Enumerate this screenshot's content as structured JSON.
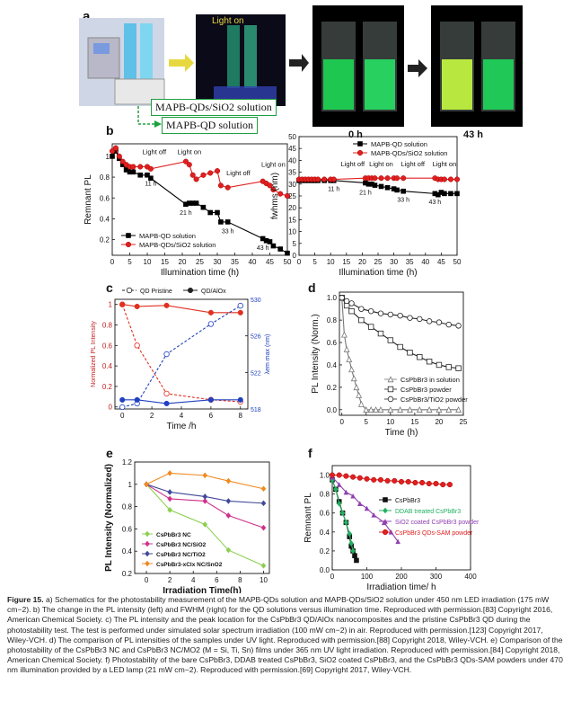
{
  "panel_a": {
    "letter": "a",
    "light_on": "Light on",
    "label_sio2": "MAPB-QDs/SiO2 solution",
    "label_qd": "MAPB-QD solution",
    "time0": "0 h",
    "time43": "43 h"
  },
  "chart_data": [
    {
      "id": "b-left",
      "type": "line",
      "letter": "b",
      "ylabel": "Remnant PL",
      "xlabel": "Illumination time (h)",
      "xlim": [
        0,
        50
      ],
      "ylim": [
        0.05,
        1.12
      ],
      "xticks": [
        0,
        5,
        10,
        15,
        20,
        25,
        30,
        35,
        40,
        45,
        50
      ],
      "yticks": [
        0.2,
        0.4,
        0.6,
        0.8,
        1.0
      ],
      "legend": "bottom-left",
      "annotations": [
        "Light off",
        "Light on",
        "Light off",
        "Light on",
        "11 h",
        "21 h",
        "33 h",
        "43 h"
      ],
      "series": [
        {
          "name": "MAPB-QD solution",
          "color": "#000000",
          "marker": "square",
          "x": [
            0,
            1,
            2,
            3,
            4,
            5,
            6,
            8,
            10,
            11,
            21,
            22,
            23,
            24,
            26,
            28,
            30,
            31,
            33,
            43,
            44,
            45,
            46,
            48,
            50
          ],
          "y": [
            1.0,
            1.05,
            0.98,
            0.92,
            0.87,
            0.85,
            0.85,
            0.82,
            0.82,
            0.79,
            0.54,
            0.55,
            0.55,
            0.55,
            0.51,
            0.46,
            0.46,
            0.37,
            0.37,
            0.21,
            0.19,
            0.18,
            0.14,
            0.11,
            0.07
          ]
        },
        {
          "name": "MAPB-QDs/SiO2 solution",
          "color": "#e02020",
          "marker": "circle",
          "x": [
            0,
            1,
            2,
            3,
            4,
            5,
            6,
            8,
            10,
            11,
            21,
            22,
            23,
            24,
            26,
            28,
            30,
            31,
            33,
            43,
            44,
            45,
            46,
            48,
            50
          ],
          "y": [
            1.05,
            1.08,
            1.0,
            0.95,
            0.92,
            0.9,
            0.9,
            0.9,
            0.9,
            0.88,
            0.95,
            0.92,
            0.82,
            0.78,
            0.82,
            0.84,
            0.86,
            0.72,
            0.7,
            0.76,
            0.74,
            0.72,
            0.68,
            0.64,
            0.62
          ]
        }
      ]
    },
    {
      "id": "b-right",
      "type": "line",
      "ylabel": "fwhms (nm)",
      "xlabel": "Illumination time (h)",
      "xlim": [
        0,
        50
      ],
      "ylim": [
        0,
        50
      ],
      "xticks": [
        0,
        5,
        10,
        15,
        20,
        25,
        30,
        35,
        40,
        45,
        50
      ],
      "yticks": [
        0,
        5,
        10,
        15,
        20,
        25,
        30,
        35,
        40,
        45,
        50
      ],
      "legend": "top-right",
      "annotations": [
        "Light off",
        "Light on",
        "Light off",
        "Light on",
        "11 h",
        "21 h",
        "33 h",
        "43 h"
      ],
      "series": [
        {
          "name": "MAPB-QD solution",
          "color": "#000000",
          "marker": "square",
          "x": [
            0,
            1,
            2,
            3,
            4,
            5,
            6,
            8,
            10,
            11,
            21,
            22,
            23,
            24,
            26,
            28,
            30,
            31,
            33,
            43,
            44,
            45,
            46,
            48,
            50
          ],
          "y": [
            31.5,
            31.5,
            31.5,
            31.5,
            31.5,
            31.5,
            31.5,
            31.5,
            31.5,
            31.5,
            30.5,
            30,
            30,
            29.5,
            29,
            28.5,
            28,
            27.5,
            27,
            26,
            25.5,
            26.5,
            26,
            26,
            26
          ]
        },
        {
          "name": "MAPB-QDs/SiO2 solution",
          "color": "#e02020",
          "marker": "circle",
          "x": [
            0,
            1,
            2,
            3,
            4,
            5,
            6,
            8,
            10,
            11,
            21,
            22,
            23,
            24,
            26,
            28,
            30,
            31,
            33,
            43,
            44,
            45,
            46,
            48,
            50
          ],
          "y": [
            32,
            32,
            32,
            32,
            32,
            32,
            32,
            32,
            32,
            32,
            32.5,
            32.5,
            32.5,
            32.5,
            32.5,
            32.5,
            32.5,
            32.5,
            32.5,
            32.5,
            32,
            32,
            32,
            32,
            32
          ]
        }
      ]
    },
    {
      "id": "c",
      "type": "line",
      "letter": "c",
      "ylabel": "Normalized PL Intensity",
      "y2label": "λem max (nm)",
      "xlabel": "Time /h",
      "xlim": [
        -0.5,
        8.5
      ],
      "ylim": [
        -0.02,
        1.05
      ],
      "y2lim": [
        518,
        530
      ],
      "xticks": [
        0,
        2,
        4,
        6,
        8
      ],
      "yticks": [
        0,
        0.2,
        0.4,
        0.6,
        0.8,
        1.0
      ],
      "y2ticks": [
        518,
        522,
        526,
        530
      ],
      "legend_items": [
        "QD Pristine",
        "QD/AlOx"
      ],
      "series": [
        {
          "name": "QD Pristine PL",
          "axis": "left",
          "color": "#e03020",
          "style": "dashed",
          "marker": "open-circle",
          "x": [
            0,
            1,
            3,
            6,
            8
          ],
          "y": [
            1.0,
            0.6,
            0.13,
            0.07,
            0.05
          ]
        },
        {
          "name": "QD/AlOx PL",
          "axis": "left",
          "color": "#e03020",
          "style": "solid",
          "marker": "filled-circle",
          "x": [
            0,
            1,
            3,
            6,
            8
          ],
          "y": [
            1.0,
            0.98,
            0.99,
            0.92,
            0.92
          ]
        },
        {
          "name": "QD Pristine λ",
          "axis": "right",
          "color": "#2040c0",
          "style": "dashed",
          "marker": "open-circle",
          "x": [
            0,
            1,
            3,
            6,
            8
          ],
          "y": [
            518.2,
            518.6,
            524.0,
            527.3,
            529.3
          ]
        },
        {
          "name": "QD/AlOx λ",
          "axis": "right",
          "color": "#2040c0",
          "style": "solid",
          "marker": "filled-circle",
          "x": [
            0,
            1,
            3,
            6,
            8
          ],
          "y": [
            519.0,
            519.0,
            518.6,
            519.0,
            519.0
          ]
        }
      ]
    },
    {
      "id": "d",
      "type": "line",
      "letter": "d",
      "ylabel": "PL Intensity (Norm.)",
      "xlabel": "Time (h)",
      "xlim": [
        -0.5,
        25
      ],
      "ylim": [
        -0.05,
        1.05
      ],
      "xticks": [
        0,
        5,
        10,
        15,
        20,
        25
      ],
      "yticks": [
        0.0,
        0.2,
        0.4,
        0.6,
        0.8,
        1.0
      ],
      "legend": "bottom-right",
      "series": [
        {
          "name": "CsPbBr3 in solution",
          "color": "#777777",
          "marker": "open-triangle",
          "x": [
            0,
            0.5,
            1,
            1.5,
            2,
            2.5,
            3,
            3.5,
            4,
            5,
            6,
            7,
            8,
            10,
            12,
            14,
            16,
            18,
            20,
            22,
            24
          ],
          "y": [
            1.0,
            0.67,
            0.54,
            0.45,
            0.36,
            0.28,
            0.2,
            0.13,
            0.05,
            0,
            0,
            0,
            0,
            0,
            0,
            0,
            0,
            0,
            0,
            0,
            0
          ]
        },
        {
          "name": "CsPbBr3 powder",
          "color": "#222222",
          "marker": "open-square",
          "x": [
            0,
            1,
            2,
            4,
            6,
            8,
            10,
            12,
            14,
            16,
            18,
            20,
            22,
            24
          ],
          "y": [
            1.0,
            0.93,
            0.88,
            0.8,
            0.74,
            0.68,
            0.62,
            0.56,
            0.51,
            0.47,
            0.43,
            0.4,
            0.38,
            0.37
          ]
        },
        {
          "name": "CsPbBr3/TiO2 powder",
          "color": "#222222",
          "marker": "open-circle",
          "x": [
            0,
            1,
            2,
            4,
            6,
            8,
            10,
            12,
            14,
            16,
            18,
            20,
            22,
            24
          ],
          "y": [
            1.0,
            0.97,
            0.95,
            0.9,
            0.88,
            0.86,
            0.85,
            0.84,
            0.82,
            0.81,
            0.79,
            0.78,
            0.76,
            0.75
          ]
        }
      ]
    },
    {
      "id": "e",
      "type": "line",
      "letter": "e",
      "ylabel": "PL Intensity (Normalized)",
      "xlabel": "Irradiation Time(h)",
      "xlim": [
        -1,
        10.5
      ],
      "ylim": [
        0.2,
        1.2
      ],
      "xticks": [
        0,
        2,
        4,
        6,
        8,
        10
      ],
      "yticks": [
        0.2,
        0.4,
        0.6,
        0.8,
        1.0,
        1.2
      ],
      "legend": "bottom-left",
      "series": [
        {
          "name": "CsPbBr3 NC",
          "color": "#8ccf50",
          "x": [
            0,
            2,
            5,
            7,
            10
          ],
          "y": [
            1.0,
            0.77,
            0.64,
            0.41,
            0.27
          ]
        },
        {
          "name": "CsPbBr3 NC/SiO2",
          "color": "#d0308a",
          "x": [
            0,
            2,
            5,
            7,
            10
          ],
          "y": [
            1.0,
            0.87,
            0.85,
            0.72,
            0.61
          ]
        },
        {
          "name": "CsPbBr3 NC/TiO2",
          "color": "#404898",
          "x": [
            0,
            2,
            5,
            7,
            10
          ],
          "y": [
            1.0,
            0.93,
            0.89,
            0.85,
            0.83
          ]
        },
        {
          "name": "CsPbBr3-xClx NC/SnO2",
          "color": "#f08a20",
          "x": [
            0,
            2,
            5,
            7,
            10
          ],
          "y": [
            1.0,
            1.1,
            1.08,
            1.03,
            0.96
          ]
        }
      ]
    },
    {
      "id": "f",
      "type": "line",
      "letter": "f",
      "ylabel": "Remnant PL",
      "xlabel": "Irradiation time/ h",
      "xlim": [
        0,
        400
      ],
      "ylim": [
        0,
        1.1
      ],
      "xticks": [
        0,
        100,
        200,
        300,
        400
      ],
      "yticks": [
        0.0,
        0.2,
        0.4,
        0.6,
        0.8,
        1.0
      ],
      "legend": "right",
      "series": [
        {
          "name": "CsPbBr3",
          "color": "#111111",
          "marker": "square",
          "x": [
            0,
            10,
            20,
            30,
            40,
            50,
            55,
            60,
            65,
            70
          ],
          "y": [
            0.95,
            0.85,
            0.72,
            0.6,
            0.5,
            0.35,
            0.25,
            0.2,
            0.15,
            0.1
          ]
        },
        {
          "name": "DDAB treated CsPbBr3",
          "color": "#20b060",
          "marker": "diamond",
          "x": [
            0,
            10,
            20,
            30,
            40,
            50,
            55,
            60
          ],
          "y": [
            0.95,
            0.85,
            0.7,
            0.6,
            0.5,
            0.38,
            0.28,
            0.2
          ]
        },
        {
          "name": "SiO2 coated CsPbBr3 powder",
          "color": "#9040b0",
          "marker": "triangle",
          "x": [
            0,
            20,
            40,
            60,
            80,
            100,
            120,
            150,
            170,
            190
          ],
          "y": [
            0.98,
            0.9,
            0.82,
            0.78,
            0.7,
            0.65,
            0.58,
            0.5,
            0.4,
            0.3
          ]
        },
        {
          "name": "CsPbBr3 QDs-SAM powder",
          "color": "#e02020",
          "marker": "circle",
          "x": [
            0,
            20,
            40,
            60,
            80,
            100,
            120,
            140,
            160,
            180,
            200,
            220,
            240,
            260,
            280,
            300,
            320,
            340
          ],
          "y": [
            1.0,
            1.0,
            0.99,
            0.98,
            0.97,
            0.96,
            0.95,
            0.95,
            0.94,
            0.94,
            0.93,
            0.93,
            0.92,
            0.92,
            0.91,
            0.91,
            0.9,
            0.9
          ]
        }
      ]
    }
  ],
  "caption": {
    "label": "Figure 15.",
    "text": "a) Schematics for the photostability measurement of the MAPB-QDs solution and MAPB-QDs/SiO2 solution under 450 nm LED irradiation (175 mW cm−2). b) The change in the PL intensity (left) and FWHM (right) for the QD solutions versus illumination time. Reproduced with permission.[83] Copyright 2016, American Chemical Society. c) The PL intensity and the peak location for the CsPbBr3 QD/AlOx nanocomposites and the pristine CsPbBr3 QD during the photostability test. The test is performed under simulated solar spectrum irradiation (100 mW cm−2) in air. Reproduced with permission.[123] Copyright 2017, Wiley-VCH. d) The comparison of PL intensities of the samples under UV light. Reproduced with permission.[88] Copyright 2018, Wiley-VCH. e) Comparison of the photostability of the CsPbBr3 NC and CsPbBr3 NC/MO2 (M = Si, Ti, Sn) films under 365 nm UV light irradiation. Reproduced with permission.[84] Copyright 2018, American Chemical Society. f) Photostability of the bare CsPbBr3, DDAB treated CsPbBr3, SiO2 coated CsPbBr3, and the CsPbBr3 QDs-SAM powders under 470 nm illumination provided by a LED lamp (21 mW cm−2). Reproduced with permission.[69] Copyright 2017, Wiley-VCH."
  }
}
